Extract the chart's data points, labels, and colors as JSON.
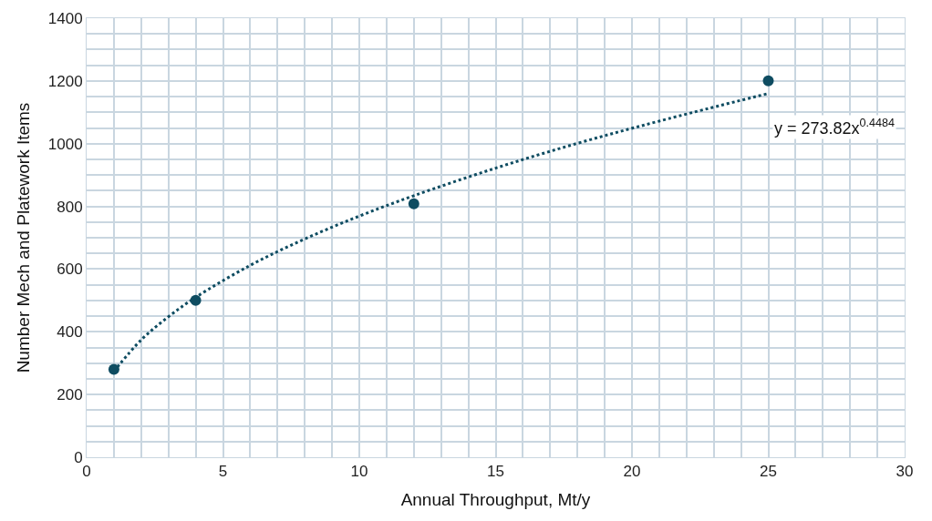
{
  "chart_data": {
    "type": "scatter",
    "xlabel": "Annual Throughput, Mt/y",
    "ylabel": "Number Mech and Platework Items",
    "series": [
      {
        "color": "#0e4c61",
        "marker": "circle",
        "x": [
          1,
          4,
          12,
          25
        ],
        "values": [
          280,
          500,
          808,
          1200
        ]
      },
      {
        "type": "line",
        "color": "#0e4c61",
        "marker": "none",
        "line_style": "dotted",
        "x": [
          1,
          2,
          3,
          4,
          6,
          8,
          10,
          12,
          15,
          18,
          21,
          25
        ],
        "values": [
          274,
          374,
          448,
          510,
          612,
          696,
          769,
          834,
          922,
          1001,
          1072,
          1160
        ]
      }
    ],
    "annotations": [
      "y = 273.82x$^{0.4484}$"
    ],
    "xlim": [
      0,
      30
    ],
    "xticks": [
      0,
      {
        "value": 1,
        "label": null
      },
      {
        "value": 2,
        "label": null
      },
      {
        "value": 3,
        "label": null
      },
      {
        "value": 4,
        "label": null
      },
      5,
      {
        "value": 6,
        "label": null
      },
      {
        "value": 7,
        "label": null
      },
      {
        "value": 8,
        "label": null
      },
      {
        "value": 9,
        "label": null
      },
      10,
      {
        "value": 11,
        "label": null
      },
      {
        "value": 12,
        "label": null
      },
      {
        "value": 13,
        "label": null
      },
      {
        "value": 14,
        "label": null
      },
      15,
      {
        "value": 16,
        "label": null
      },
      {
        "value": 17,
        "label": null
      },
      {
        "value": 18,
        "label": null
      },
      {
        "value": 19,
        "label": null
      },
      20,
      {
        "value": 21,
        "label": null
      },
      {
        "value": 22,
        "label": null
      },
      {
        "value": 23,
        "label": null
      },
      {
        "value": 24,
        "label": null
      },
      25,
      {
        "value": 26,
        "label": null
      },
      {
        "value": 27,
        "label": null
      },
      {
        "value": 28,
        "label": null
      },
      {
        "value": 29,
        "label": null
      },
      30
    ],
    "ylim": [
      0,
      1400
    ],
    "yticks": [
      0,
      {
        "value": 50,
        "label": null
      },
      {
        "value": 100,
        "label": null
      },
      {
        "value": 150,
        "label": null
      },
      200,
      {
        "value": 250,
        "label": null
      },
      {
        "value": 300,
        "label": null
      },
      {
        "value": 350,
        "label": null
      },
      400,
      {
        "value": 450,
        "label": null
      },
      {
        "value": 500,
        "label": null
      },
      {
        "value": 550,
        "label": null
      },
      600,
      {
        "value": 650,
        "label": null
      },
      {
        "value": 700,
        "label": null
      },
      {
        "value": 750,
        "label": null
      },
      800,
      {
        "value": 850,
        "label": null
      },
      {
        "value": 900,
        "label": null
      },
      {
        "value": 950,
        "label": null
      },
      1000,
      {
        "value": 1050,
        "label": null
      },
      {
        "value": 1100,
        "label": null
      },
      {
        "value": 1150,
        "label": null
      },
      1200,
      {
        "value": 1250,
        "label": null
      },
      {
        "value": 1300,
        "label": null
      },
      {
        "value": 1350,
        "label": null
      },
      1400
    ],
    "grid": true
  }
}
